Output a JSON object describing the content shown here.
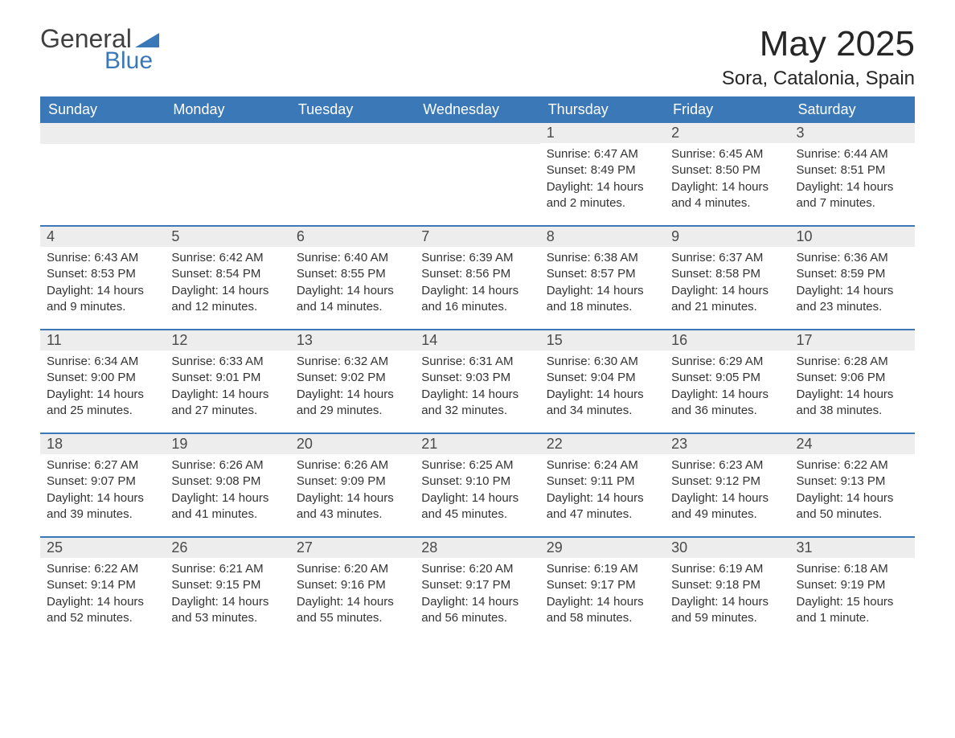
{
  "logo": {
    "text1": "General",
    "text2": "Blue"
  },
  "title": "May 2025",
  "location": "Sora, Catalonia, Spain",
  "weekday_headers": [
    "Sunday",
    "Monday",
    "Tuesday",
    "Wednesday",
    "Thursday",
    "Friday",
    "Saturday"
  ],
  "colors": {
    "header_bg": "#3b78b8",
    "header_text": "#ffffff",
    "daynum_bg": "#ededed",
    "body_text": "#333333",
    "rule": "#3b78b8"
  },
  "fonts": {
    "title_size_pt": 33,
    "location_size_pt": 18,
    "weekday_size_pt": 14,
    "daynum_size_pt": 14,
    "body_size_pt": 11
  },
  "weeks": [
    [
      null,
      null,
      null,
      null,
      {
        "n": "1",
        "sunrise": "Sunrise: 6:47 AM",
        "sunset": "Sunset: 8:49 PM",
        "daylight": "Daylight: 14 hours and 2 minutes."
      },
      {
        "n": "2",
        "sunrise": "Sunrise: 6:45 AM",
        "sunset": "Sunset: 8:50 PM",
        "daylight": "Daylight: 14 hours and 4 minutes."
      },
      {
        "n": "3",
        "sunrise": "Sunrise: 6:44 AM",
        "sunset": "Sunset: 8:51 PM",
        "daylight": "Daylight: 14 hours and 7 minutes."
      }
    ],
    [
      {
        "n": "4",
        "sunrise": "Sunrise: 6:43 AM",
        "sunset": "Sunset: 8:53 PM",
        "daylight": "Daylight: 14 hours and 9 minutes."
      },
      {
        "n": "5",
        "sunrise": "Sunrise: 6:42 AM",
        "sunset": "Sunset: 8:54 PM",
        "daylight": "Daylight: 14 hours and 12 minutes."
      },
      {
        "n": "6",
        "sunrise": "Sunrise: 6:40 AM",
        "sunset": "Sunset: 8:55 PM",
        "daylight": "Daylight: 14 hours and 14 minutes."
      },
      {
        "n": "7",
        "sunrise": "Sunrise: 6:39 AM",
        "sunset": "Sunset: 8:56 PM",
        "daylight": "Daylight: 14 hours and 16 minutes."
      },
      {
        "n": "8",
        "sunrise": "Sunrise: 6:38 AM",
        "sunset": "Sunset: 8:57 PM",
        "daylight": "Daylight: 14 hours and 18 minutes."
      },
      {
        "n": "9",
        "sunrise": "Sunrise: 6:37 AM",
        "sunset": "Sunset: 8:58 PM",
        "daylight": "Daylight: 14 hours and 21 minutes."
      },
      {
        "n": "10",
        "sunrise": "Sunrise: 6:36 AM",
        "sunset": "Sunset: 8:59 PM",
        "daylight": "Daylight: 14 hours and 23 minutes."
      }
    ],
    [
      {
        "n": "11",
        "sunrise": "Sunrise: 6:34 AM",
        "sunset": "Sunset: 9:00 PM",
        "daylight": "Daylight: 14 hours and 25 minutes."
      },
      {
        "n": "12",
        "sunrise": "Sunrise: 6:33 AM",
        "sunset": "Sunset: 9:01 PM",
        "daylight": "Daylight: 14 hours and 27 minutes."
      },
      {
        "n": "13",
        "sunrise": "Sunrise: 6:32 AM",
        "sunset": "Sunset: 9:02 PM",
        "daylight": "Daylight: 14 hours and 29 minutes."
      },
      {
        "n": "14",
        "sunrise": "Sunrise: 6:31 AM",
        "sunset": "Sunset: 9:03 PM",
        "daylight": "Daylight: 14 hours and 32 minutes."
      },
      {
        "n": "15",
        "sunrise": "Sunrise: 6:30 AM",
        "sunset": "Sunset: 9:04 PM",
        "daylight": "Daylight: 14 hours and 34 minutes."
      },
      {
        "n": "16",
        "sunrise": "Sunrise: 6:29 AM",
        "sunset": "Sunset: 9:05 PM",
        "daylight": "Daylight: 14 hours and 36 minutes."
      },
      {
        "n": "17",
        "sunrise": "Sunrise: 6:28 AM",
        "sunset": "Sunset: 9:06 PM",
        "daylight": "Daylight: 14 hours and 38 minutes."
      }
    ],
    [
      {
        "n": "18",
        "sunrise": "Sunrise: 6:27 AM",
        "sunset": "Sunset: 9:07 PM",
        "daylight": "Daylight: 14 hours and 39 minutes."
      },
      {
        "n": "19",
        "sunrise": "Sunrise: 6:26 AM",
        "sunset": "Sunset: 9:08 PM",
        "daylight": "Daylight: 14 hours and 41 minutes."
      },
      {
        "n": "20",
        "sunrise": "Sunrise: 6:26 AM",
        "sunset": "Sunset: 9:09 PM",
        "daylight": "Daylight: 14 hours and 43 minutes."
      },
      {
        "n": "21",
        "sunrise": "Sunrise: 6:25 AM",
        "sunset": "Sunset: 9:10 PM",
        "daylight": "Daylight: 14 hours and 45 minutes."
      },
      {
        "n": "22",
        "sunrise": "Sunrise: 6:24 AM",
        "sunset": "Sunset: 9:11 PM",
        "daylight": "Daylight: 14 hours and 47 minutes."
      },
      {
        "n": "23",
        "sunrise": "Sunrise: 6:23 AM",
        "sunset": "Sunset: 9:12 PM",
        "daylight": "Daylight: 14 hours and 49 minutes."
      },
      {
        "n": "24",
        "sunrise": "Sunrise: 6:22 AM",
        "sunset": "Sunset: 9:13 PM",
        "daylight": "Daylight: 14 hours and 50 minutes."
      }
    ],
    [
      {
        "n": "25",
        "sunrise": "Sunrise: 6:22 AM",
        "sunset": "Sunset: 9:14 PM",
        "daylight": "Daylight: 14 hours and 52 minutes."
      },
      {
        "n": "26",
        "sunrise": "Sunrise: 6:21 AM",
        "sunset": "Sunset: 9:15 PM",
        "daylight": "Daylight: 14 hours and 53 minutes."
      },
      {
        "n": "27",
        "sunrise": "Sunrise: 6:20 AM",
        "sunset": "Sunset: 9:16 PM",
        "daylight": "Daylight: 14 hours and 55 minutes."
      },
      {
        "n": "28",
        "sunrise": "Sunrise: 6:20 AM",
        "sunset": "Sunset: 9:17 PM",
        "daylight": "Daylight: 14 hours and 56 minutes."
      },
      {
        "n": "29",
        "sunrise": "Sunrise: 6:19 AM",
        "sunset": "Sunset: 9:17 PM",
        "daylight": "Daylight: 14 hours and 58 minutes."
      },
      {
        "n": "30",
        "sunrise": "Sunrise: 6:19 AM",
        "sunset": "Sunset: 9:18 PM",
        "daylight": "Daylight: 14 hours and 59 minutes."
      },
      {
        "n": "31",
        "sunrise": "Sunrise: 6:18 AM",
        "sunset": "Sunset: 9:19 PM",
        "daylight": "Daylight: 15 hours and 1 minute."
      }
    ]
  ]
}
